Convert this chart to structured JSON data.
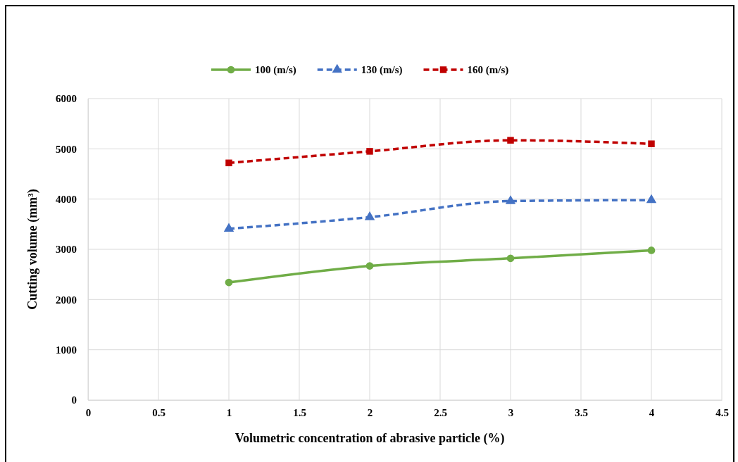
{
  "chart_data": {
    "type": "line",
    "xlabel": "Volumetric concentration of abrasive particle (%)",
    "ylabel": "Cutting volume (mm³)",
    "xlim": [
      0,
      4.5
    ],
    "xticks": [
      0,
      0.5,
      1,
      1.5,
      2,
      2.5,
      3,
      3.5,
      4,
      4.5
    ],
    "ylim": [
      0,
      6000
    ],
    "yticks": [
      0,
      1000,
      2000,
      3000,
      4000,
      5000,
      6000
    ],
    "grid": true,
    "legend": "top",
    "series": [
      {
        "name": "100 (m/s)",
        "color": "#70ad47",
        "marker": "circle",
        "line_style": "solid",
        "x": [
          1,
          2,
          3,
          4
        ],
        "values": [
          2340,
          2670,
          2820,
          2980
        ]
      },
      {
        "name": "130 (m/s)",
        "color": "#4472c4",
        "marker": "triangle",
        "line_style": "dashed",
        "x": [
          1,
          2,
          3,
          4
        ],
        "values": [
          3410,
          3640,
          3960,
          3980
        ]
      },
      {
        "name": "160 (m/s)",
        "color": "#c00000",
        "marker": "square",
        "line_style": "dashed",
        "x": [
          1,
          2,
          3,
          4
        ],
        "values": [
          4720,
          4950,
          5170,
          5100
        ]
      }
    ]
  }
}
